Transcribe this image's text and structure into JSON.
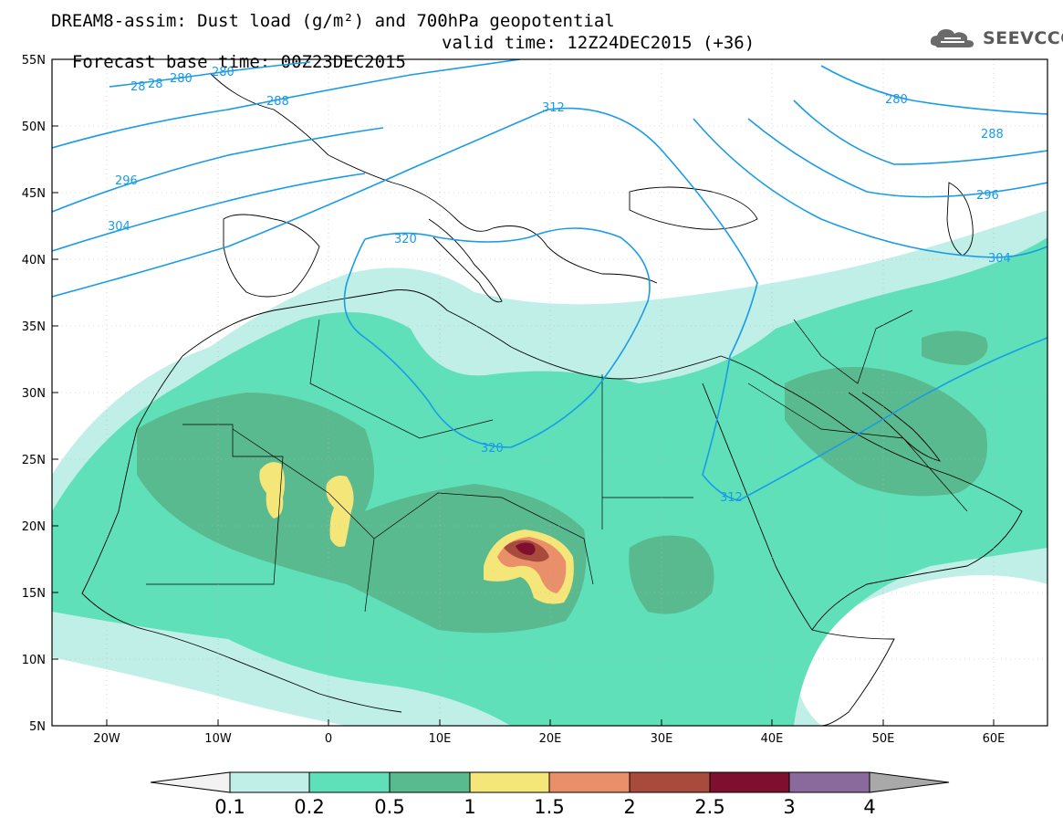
{
  "title": {
    "line1": "DREAM8-assim: Dust load (g/m²) and 700hPa geopotential",
    "line2_base": "Forecast base time: 00Z23DEC2015",
    "line2_valid": "valid time: 12Z24DEC2015 (+36)"
  },
  "logo": {
    "text": "SEEVCCC",
    "icon": "cloud-icon"
  },
  "axes": {
    "lat_labels": [
      "55N",
      "50N",
      "45N",
      "40N",
      "35N",
      "30N",
      "25N",
      "20N",
      "15N",
      "10N",
      "5N"
    ],
    "lon_labels": [
      "20W",
      "10W",
      "0",
      "10E",
      "20E",
      "30E",
      "40E",
      "50E",
      "60E"
    ]
  },
  "contour_labels": [
    "28",
    "28",
    "280",
    "280",
    "288",
    "296",
    "304",
    "312",
    "320",
    "320",
    "312",
    "280",
    "288",
    "296",
    "304"
  ],
  "colorbar": {
    "labels": [
      "0.1",
      "0.2",
      "0.5",
      "1",
      "1.5",
      "2",
      "2.5",
      "3",
      "4"
    ],
    "colors": [
      "#f2f2f2",
      "#bfefe6",
      "#5fe0b8",
      "#59b98f",
      "#f5e67a",
      "#e9906a",
      "#a84a3c",
      "#7e0f2e",
      "#8a6a9c",
      "#a9a9a9"
    ]
  },
  "colors": {
    "dust_low": "#bfefe6",
    "dust_mid": "#5fe0b8",
    "dust_high": "#59b98f",
    "dust_yellow": "#f5e67a",
    "dust_orange": "#e9906a",
    "dust_brown": "#a84a3c",
    "dust_dark": "#7e0f2e",
    "contour": "#1a9be8"
  }
}
